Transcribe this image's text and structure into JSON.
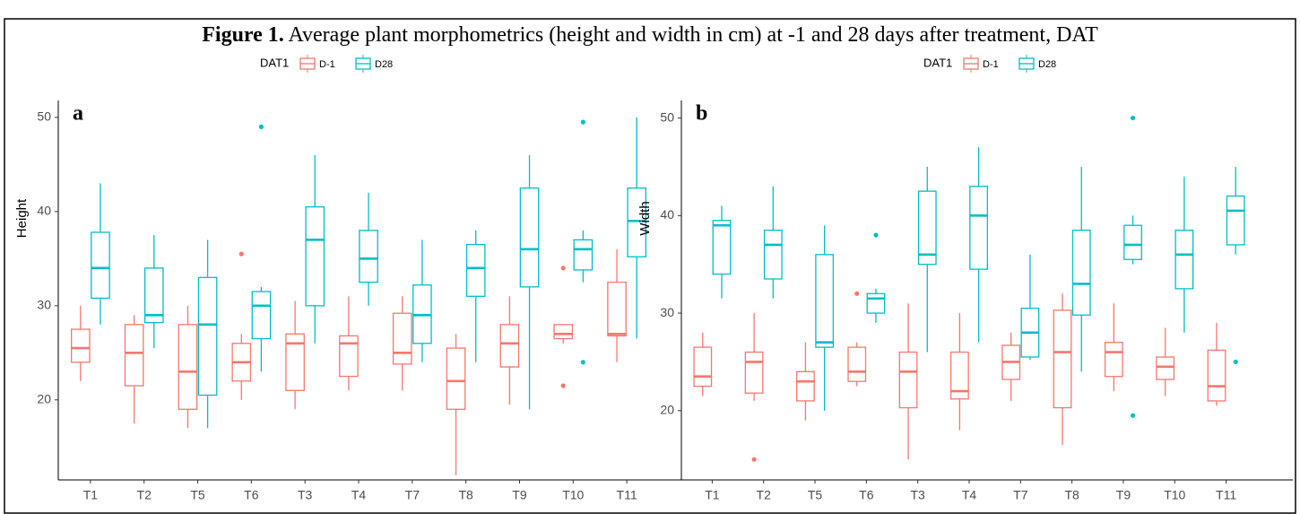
{
  "figure": {
    "label": "Figure 1.",
    "title": "Average plant morphometrics (height and width in cm) at -1 and 28 days after treatment, DAT"
  },
  "chart_data": [
    {
      "type": "boxplot",
      "panel": "a",
      "y_label": "Height",
      "legend_title": "DAT1",
      "categories": [
        "T1",
        "T2",
        "T5",
        "T6",
        "T3",
        "T4",
        "T7",
        "T8",
        "T9",
        "T10",
        "T11"
      ],
      "ylim": [
        11.5,
        51.8
      ],
      "yticks": [
        20,
        30,
        40,
        50
      ],
      "series": [
        {
          "name": "D-1",
          "color": "#F8766D",
          "boxes": [
            {
              "min": 22,
              "q1": 24,
              "median": 25.5,
              "q3": 27.5,
              "max": 30,
              "outliers": []
            },
            {
              "min": 17.5,
              "q1": 21.5,
              "median": 25,
              "q3": 28,
              "max": 29,
              "outliers": []
            },
            {
              "min": 17,
              "q1": 19,
              "median": 23,
              "q3": 28,
              "max": 30,
              "outliers": []
            },
            {
              "min": 20,
              "q1": 22,
              "median": 24,
              "q3": 26,
              "max": 27,
              "outliers": [
                35.5
              ]
            },
            {
              "min": 19,
              "q1": 21,
              "median": 26,
              "q3": 27,
              "max": 30.5,
              "outliers": []
            },
            {
              "min": 21,
              "q1": 22.5,
              "median": 26,
              "q3": 26.8,
              "max": 31,
              "outliers": []
            },
            {
              "min": 21,
              "q1": 23.8,
              "median": 25,
              "q3": 29.2,
              "max": 31,
              "outliers": []
            },
            {
              "min": 12,
              "q1": 19,
              "median": 22,
              "q3": 25.5,
              "max": 27,
              "outliers": []
            },
            {
              "min": 19.5,
              "q1": 23.5,
              "median": 26,
              "q3": 28,
              "max": 31,
              "outliers": []
            },
            {
              "min": 26,
              "q1": 26.5,
              "median": 27,
              "q3": 28,
              "max": 28,
              "outliers": [
                34,
                21.5
              ]
            },
            {
              "min": 24,
              "q1": 26.8,
              "median": 27,
              "q3": 32.5,
              "max": 36,
              "outliers": []
            }
          ]
        },
        {
          "name": "D28",
          "color": "#00BFC4",
          "boxes": [
            {
              "min": 28,
              "q1": 30.8,
              "median": 34,
              "q3": 37.8,
              "max": 43,
              "outliers": []
            },
            {
              "min": 25.5,
              "q1": 28.2,
              "median": 29,
              "q3": 34,
              "max": 37.5,
              "outliers": []
            },
            {
              "min": 17,
              "q1": 20.5,
              "median": 28,
              "q3": 33,
              "max": 37,
              "outliers": []
            },
            {
              "min": 23,
              "q1": 26.5,
              "median": 30,
              "q3": 31.5,
              "max": 32,
              "outliers": [
                49
              ]
            },
            {
              "min": 26,
              "q1": 30,
              "median": 37,
              "q3": 40.5,
              "max": 46,
              "outliers": []
            },
            {
              "min": 30,
              "q1": 32.5,
              "median": 35,
              "q3": 38,
              "max": 42,
              "outliers": []
            },
            {
              "min": 24,
              "q1": 26,
              "median": 29,
              "q3": 32.2,
              "max": 37,
              "outliers": []
            },
            {
              "min": 24,
              "q1": 31,
              "median": 34,
              "q3": 36.5,
              "max": 38,
              "outliers": []
            },
            {
              "min": 19,
              "q1": 32,
              "median": 36,
              "q3": 42.5,
              "max": 46,
              "outliers": []
            },
            {
              "min": 32.5,
              "q1": 33.8,
              "median": 36,
              "q3": 37,
              "max": 38,
              "outliers": [
                49.5,
                24
              ]
            },
            {
              "min": 26.5,
              "q1": 35.2,
              "median": 39,
              "q3": 42.5,
              "max": 50,
              "outliers": []
            }
          ]
        }
      ]
    },
    {
      "type": "boxplot",
      "panel": "b",
      "y_label": "Width",
      "legend_title": "DAT1",
      "categories": [
        "T1",
        "T2",
        "T5",
        "T6",
        "T3",
        "T4",
        "T7",
        "T8",
        "T9",
        "T10",
        "T11"
      ],
      "ylim": [
        12.9,
        51.8
      ],
      "yticks": [
        20,
        30,
        40,
        50
      ],
      "series": [
        {
          "name": "D-1",
          "color": "#F8766D",
          "boxes": [
            {
              "min": 21.5,
              "q1": 22.5,
              "median": 23.5,
              "q3": 26.5,
              "max": 28,
              "outliers": []
            },
            {
              "min": 21,
              "q1": 21.8,
              "median": 25,
              "q3": 26,
              "max": 30,
              "outliers": [
                15
              ]
            },
            {
              "min": 19,
              "q1": 21,
              "median": 23,
              "q3": 24,
              "max": 27,
              "outliers": []
            },
            {
              "min": 22.5,
              "q1": 23,
              "median": 24,
              "q3": 26.5,
              "max": 27,
              "outliers": [
                32
              ]
            },
            {
              "min": 15,
              "q1": 20.3,
              "median": 24,
              "q3": 26,
              "max": 31,
              "outliers": []
            },
            {
              "min": 18,
              "q1": 21.2,
              "median": 22,
              "q3": 26,
              "max": 30,
              "outliers": []
            },
            {
              "min": 21,
              "q1": 23.2,
              "median": 25,
              "q3": 26.7,
              "max": 28,
              "outliers": []
            },
            {
              "min": 16.5,
              "q1": 20.3,
              "median": 26,
              "q3": 30.3,
              "max": 32,
              "outliers": []
            },
            {
              "min": 22,
              "q1": 23.5,
              "median": 26,
              "q3": 27,
              "max": 31,
              "outliers": []
            },
            {
              "min": 21.5,
              "q1": 23.2,
              "median": 24.5,
              "q3": 25.5,
              "max": 28.5,
              "outliers": []
            },
            {
              "min": 20.5,
              "q1": 21,
              "median": 22.5,
              "q3": 26.2,
              "max": 29,
              "outliers": []
            }
          ]
        },
        {
          "name": "D28",
          "color": "#00BFC4",
          "boxes": [
            {
              "min": 31.5,
              "q1": 34,
              "median": 39,
              "q3": 39.5,
              "max": 41,
              "outliers": []
            },
            {
              "min": 31.5,
              "q1": 33.5,
              "median": 37,
              "q3": 38.5,
              "max": 43,
              "outliers": []
            },
            {
              "min": 20,
              "q1": 26.5,
              "median": 27,
              "q3": 36,
              "max": 39,
              "outliers": []
            },
            {
              "min": 29,
              "q1": 30,
              "median": 31.5,
              "q3": 32,
              "max": 32.5,
              "outliers": [
                38
              ]
            },
            {
              "min": 26,
              "q1": 35,
              "median": 36,
              "q3": 42.5,
              "max": 45,
              "outliers": []
            },
            {
              "min": 27,
              "q1": 34.5,
              "median": 40,
              "q3": 43,
              "max": 47,
              "outliers": []
            },
            {
              "min": 25.2,
              "q1": 25.5,
              "median": 28,
              "q3": 30.5,
              "max": 36,
              "outliers": []
            },
            {
              "min": 24,
              "q1": 29.8,
              "median": 33,
              "q3": 38.5,
              "max": 45,
              "outliers": []
            },
            {
              "min": 35,
              "q1": 35.5,
              "median": 37,
              "q3": 39,
              "max": 40,
              "outliers": [
                50,
                19.5
              ]
            },
            {
              "min": 28,
              "q1": 32.5,
              "median": 36,
              "q3": 38.5,
              "max": 44,
              "outliers": []
            },
            {
              "min": 36,
              "q1": 37,
              "median": 40.5,
              "q3": 42,
              "max": 45,
              "outliers": [
                25
              ]
            }
          ]
        }
      ]
    }
  ]
}
